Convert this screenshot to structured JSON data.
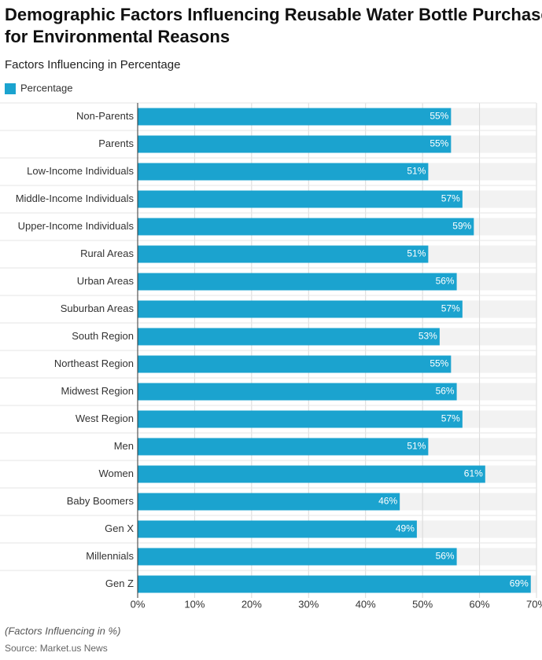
{
  "chart_data": {
    "type": "bar",
    "orientation": "horizontal",
    "title": "Demographic Factors Influencing Reusable Water Bottle Purchases for Environmental Reasons",
    "subtitle": "Factors Influencing in Percentage",
    "note": "(Factors Influencing in %)",
    "source": "Source: Market.us News",
    "categories": [
      "Non-Parents",
      "Parents",
      "Low-Income Individuals",
      "Middle-Income Individuals",
      "Upper-Income Individuals",
      "Rural Areas",
      "Urban Areas",
      "Suburban Areas",
      "South Region",
      "Northeast Region",
      "Midwest Region",
      "West Region",
      "Men",
      "Women",
      "Baby Boomers",
      "Gen X",
      "Millennials",
      "Gen Z"
    ],
    "series": [
      {
        "name": "Percentage",
        "color": "#1ba3cf",
        "values": [
          55,
          55,
          51,
          57,
          59,
          51,
          56,
          57,
          53,
          55,
          56,
          57,
          51,
          61,
          46,
          49,
          56,
          69
        ],
        "value_labels": [
          "55%",
          "55%",
          "51%",
          "57%",
          "59%",
          "51%",
          "56%",
          "57%",
          "53%",
          "55%",
          "56%",
          "57%",
          "51%",
          "61%",
          "46%",
          "49%",
          "56%",
          "69%"
        ]
      }
    ],
    "xlim": [
      0,
      70
    ],
    "xticks": [
      {
        "value": 0,
        "label": "0%"
      },
      {
        "value": 10,
        "label": "10%"
      },
      {
        "value": 20,
        "label": "20%"
      },
      {
        "value": 30,
        "label": "30%"
      },
      {
        "value": 40,
        "label": "40%"
      },
      {
        "value": 50,
        "label": "50%"
      },
      {
        "value": 60,
        "label": "60%"
      },
      {
        "value": 70,
        "label": "70%"
      }
    ],
    "grid": true
  }
}
